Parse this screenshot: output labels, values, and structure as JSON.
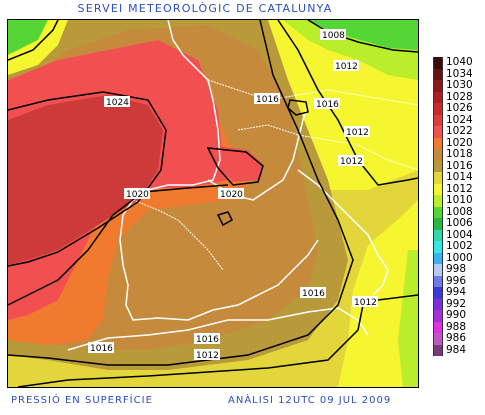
{
  "header": {
    "title": "SERVEI METEOROLÒGIC DE CATALUNYA"
  },
  "footer": {
    "left": "PRESSIÓ EN SUPERFÍCIE",
    "right": "ANÀLISI 12UTC 09 JUL 2009"
  },
  "map": {
    "isobar_labels": [
      "1024",
      "1020",
      "1020",
      "1016",
      "1016",
      "1012",
      "1012",
      "1012",
      "1008",
      "1016",
      "1016",
      "1012",
      "1012"
    ]
  },
  "legend": {
    "items": [
      {
        "label": "1040",
        "color": "#3a0b0b"
      },
      {
        "label": "1034",
        "color": "#641212"
      },
      {
        "label": "1030",
        "color": "#8a1a1a"
      },
      {
        "label": "1028",
        "color": "#b01f1f"
      },
      {
        "label": "1026",
        "color": "#cc2a2a"
      },
      {
        "label": "1024",
        "color": "#e23b3b"
      },
      {
        "label": "1022",
        "color": "#f25050"
      },
      {
        "label": "1020",
        "color": "#f07a2e"
      },
      {
        "label": "1018",
        "color": "#c68a3c"
      },
      {
        "label": "1016",
        "color": "#b99a3b"
      },
      {
        "label": "1014",
        "color": "#e3d63a"
      },
      {
        "label": "1012",
        "color": "#f5f530"
      },
      {
        "label": "1010",
        "color": "#b9ef2a"
      },
      {
        "label": "1008",
        "color": "#56d636"
      },
      {
        "label": "1006",
        "color": "#25b845"
      },
      {
        "label": "1004",
        "color": "#2fd8a8"
      },
      {
        "label": "1002",
        "color": "#35e8e8"
      },
      {
        "label": "1000",
        "color": "#3ab2ee"
      },
      {
        "label": "998",
        "color": "#b8c8f0"
      },
      {
        "label": "996",
        "color": "#6e7ce8"
      },
      {
        "label": "994",
        "color": "#3a3ad8"
      },
      {
        "label": "992",
        "color": "#7a2fd8"
      },
      {
        "label": "990",
        "color": "#a82fd8"
      },
      {
        "label": "988",
        "color": "#e030e0"
      },
      {
        "label": "986",
        "color": "#c256c2"
      },
      {
        "label": "984",
        "color": "#7a3a7a"
      }
    ]
  }
}
